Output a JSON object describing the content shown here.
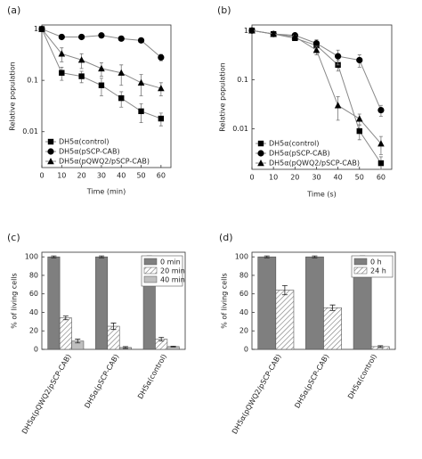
{
  "chart_data": [
    {
      "type": "line",
      "panel_label": "(a)",
      "xlabel": "Time (min)",
      "ylabel": "Relative population",
      "log_y": true,
      "legend": "lower left",
      "x": [
        0,
        10,
        20,
        30,
        40,
        50,
        60
      ],
      "xlim": [
        0,
        65
      ],
      "xticks": [
        0,
        10,
        20,
        30,
        40,
        50,
        60
      ],
      "ylim": [
        0.002,
        1.2
      ],
      "yticks": [
        1,
        0.1,
        0.01
      ],
      "series": [
        {
          "name": "DH5α(control)",
          "color": "#000000",
          "marker": "square",
          "values": [
            1,
            0.14,
            0.12,
            0.08,
            0.045,
            0.025,
            0.018
          ],
          "errors": [
            0,
            0.04,
            0.03,
            0.03,
            0.015,
            0.01,
            0.005
          ]
        },
        {
          "name": "DH5α(pSCP-CAB)",
          "color": "#000000",
          "marker": "circle",
          "values": [
            1,
            0.7,
            0.7,
            0.75,
            0.65,
            0.6,
            0.28
          ],
          "errors": [
            0,
            0.02,
            0.03,
            0.05,
            0.05,
            0.05,
            0.04
          ]
        },
        {
          "name": "DH5α(pQWQ2/pSCP-CAB)",
          "color": "#000000",
          "marker": "triangle",
          "values": [
            1,
            0.33,
            0.25,
            0.17,
            0.14,
            0.09,
            0.07
          ],
          "errors": [
            0,
            0.1,
            0.08,
            0.05,
            0.06,
            0.04,
            0.02
          ]
        }
      ]
    },
    {
      "type": "line",
      "panel_label": "(b)",
      "xlabel": "Time (s)",
      "ylabel": "Relative population",
      "log_y": true,
      "legend": "lower left",
      "x": [
        0,
        10,
        20,
        30,
        40,
        50,
        60
      ],
      "xlim": [
        0,
        65
      ],
      "xticks": [
        0,
        10,
        20,
        30,
        40,
        50,
        60
      ],
      "ylim": [
        0.0015,
        1.3
      ],
      "yticks": [
        1,
        0.1,
        0.01
      ],
      "series": [
        {
          "name": "DH5α(control)",
          "color": "#000000",
          "marker": "square",
          "values": [
            1,
            0.85,
            0.7,
            0.5,
            0.2,
            0.009,
            0.002
          ],
          "errors": [
            0,
            0.03,
            0.05,
            0.05,
            0.05,
            0.003,
            0.0007
          ]
        },
        {
          "name": "DH5α(pSCP-CAB)",
          "color": "#000000",
          "marker": "circle",
          "values": [
            1,
            0.85,
            0.8,
            0.55,
            0.3,
            0.25,
            0.024
          ],
          "errors": [
            0,
            0.03,
            0.05,
            0.1,
            0.1,
            0.07,
            0.006
          ]
        },
        {
          "name": "DH5α(pQWQ2/pSCP-CAB)",
          "color": "#000000",
          "marker": "triangle",
          "values": [
            1,
            0.85,
            0.75,
            0.4,
            0.03,
            0.016,
            0.005
          ],
          "errors": [
            0,
            0.03,
            0.05,
            0.08,
            0.015,
            0.004,
            0.002
          ]
        }
      ]
    },
    {
      "type": "bar",
      "panel_label": "(c)",
      "ylabel": "% of living cells",
      "legend": "upper right",
      "categories": [
        "DH5α(pQWQ2/pSCP-CAB)",
        "DH5α(pSCP-CAB)",
        "DH5α(control)"
      ],
      "ylim": [
        0,
        105
      ],
      "yticks": [
        0,
        20,
        40,
        60,
        80,
        100
      ],
      "series": [
        {
          "name": "0 min",
          "color": "#7f7f7f",
          "values": [
            100,
            100,
            100
          ],
          "errors": [
            1,
            1,
            1
          ]
        },
        {
          "name": "20 min",
          "color": "#ffffff",
          "pattern": "hatch",
          "values": [
            34,
            25,
            11
          ],
          "errors": [
            2,
            3.5,
            2
          ]
        },
        {
          "name": "40 min",
          "color": "#bfbfbf",
          "values": [
            9,
            2,
            3
          ],
          "errors": [
            2,
            1,
            0.5
          ]
        }
      ]
    },
    {
      "type": "bar",
      "panel_label": "(d)",
      "ylabel": "% of living cells",
      "legend": "upper right",
      "categories": [
        "DH5α(pQWQ2/pSCP-CAB)",
        "DH5α(pSCP-CAB)",
        "DH5α(control)"
      ],
      "ylim": [
        0,
        105
      ],
      "yticks": [
        0,
        20,
        40,
        60,
        80,
        100
      ],
      "series": [
        {
          "name": "0 h",
          "color": "#7f7f7f",
          "values": [
            100,
            100,
            100
          ],
          "errors": [
            1,
            1,
            1
          ]
        },
        {
          "name": "24 h",
          "color": "#ffffff",
          "pattern": "hatch",
          "values": [
            64,
            45,
            3
          ],
          "errors": [
            5,
            3,
            1
          ]
        }
      ]
    }
  ]
}
